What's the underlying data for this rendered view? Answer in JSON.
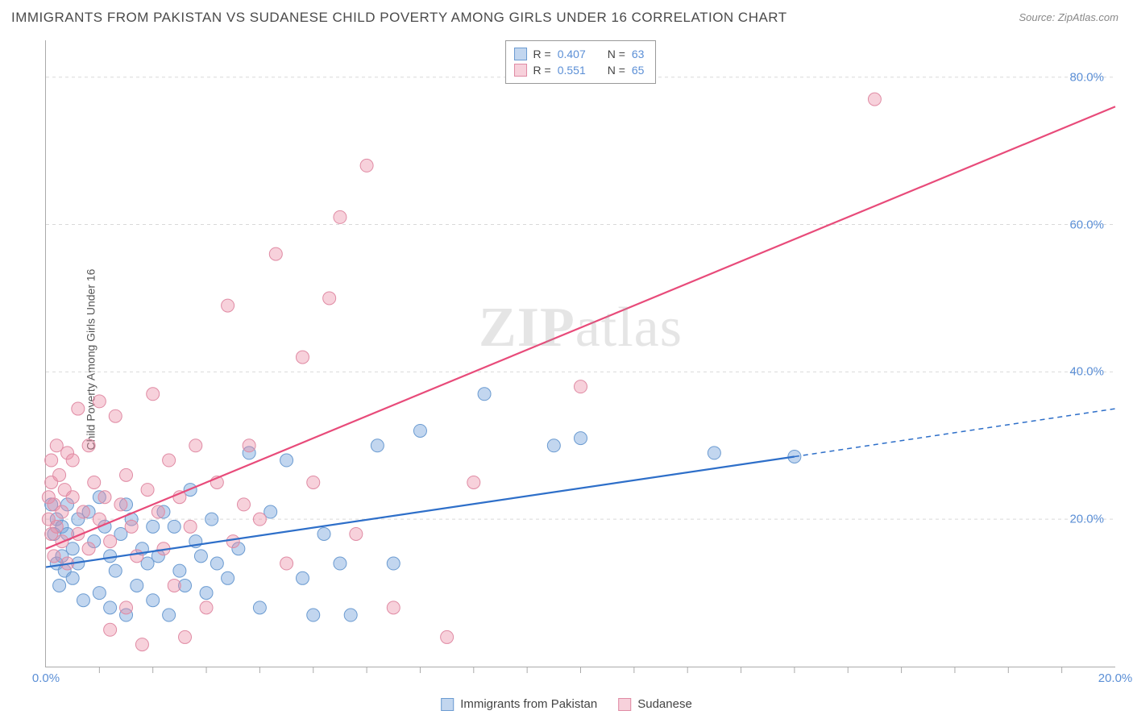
{
  "title": "IMMIGRANTS FROM PAKISTAN VS SUDANESE CHILD POVERTY AMONG GIRLS UNDER 16 CORRELATION CHART",
  "source_prefix": "Source: ",
  "source_link": "ZipAtlas.com",
  "y_axis_label": "Child Poverty Among Girls Under 16",
  "watermark_bold": "ZIP",
  "watermark_rest": "atlas",
  "chart": {
    "type": "scatter",
    "background_color": "#ffffff",
    "grid_color": "#d9d9d9",
    "axis_color": "#aaaaaa",
    "xlim": [
      0,
      20
    ],
    "ylim": [
      0,
      85
    ],
    "x_ticks": [
      {
        "pos": 0,
        "label": "0.0%"
      },
      {
        "pos": 20,
        "label": "20.0%"
      }
    ],
    "x_minor_ticks": [
      1,
      2,
      3,
      4,
      5,
      6,
      7,
      8,
      9,
      10,
      11,
      12,
      13,
      14,
      15,
      16,
      17,
      18,
      19
    ],
    "y_ticks": [
      {
        "pos": 20,
        "label": "20.0%"
      },
      {
        "pos": 40,
        "label": "40.0%"
      },
      {
        "pos": 60,
        "label": "60.0%"
      },
      {
        "pos": 80,
        "label": "80.0%"
      }
    ],
    "series": [
      {
        "id": "pakistan",
        "label": "Immigrants from Pakistan",
        "fill": "rgba(120,165,220,0.45)",
        "stroke": "#6b9bd1",
        "line_stroke": "#2e6fc9",
        "line_width": 2.2,
        "marker_radius": 8,
        "R": "0.407",
        "N": "63",
        "regression": {
          "x1": 0,
          "y1": 13.5,
          "x2": 14,
          "y2": 28.5,
          "dash_x2": 20,
          "dash_y2": 35
        },
        "points": [
          [
            0.1,
            22
          ],
          [
            0.15,
            18
          ],
          [
            0.2,
            14
          ],
          [
            0.2,
            20
          ],
          [
            0.25,
            11
          ],
          [
            0.3,
            15
          ],
          [
            0.3,
            19
          ],
          [
            0.35,
            13
          ],
          [
            0.4,
            18
          ],
          [
            0.4,
            22
          ],
          [
            0.5,
            12
          ],
          [
            0.5,
            16
          ],
          [
            0.6,
            20
          ],
          [
            0.6,
            14
          ],
          [
            0.7,
            9
          ],
          [
            0.8,
            21
          ],
          [
            0.9,
            17
          ],
          [
            1.0,
            10
          ],
          [
            1.0,
            23
          ],
          [
            1.1,
            19
          ],
          [
            1.2,
            8
          ],
          [
            1.2,
            15
          ],
          [
            1.3,
            13
          ],
          [
            1.4,
            18
          ],
          [
            1.5,
            22
          ],
          [
            1.5,
            7
          ],
          [
            1.6,
            20
          ],
          [
            1.7,
            11
          ],
          [
            1.8,
            16
          ],
          [
            1.9,
            14
          ],
          [
            2.0,
            9
          ],
          [
            2.0,
            19
          ],
          [
            2.1,
            15
          ],
          [
            2.2,
            21
          ],
          [
            2.3,
            7
          ],
          [
            2.4,
            19
          ],
          [
            2.5,
            13
          ],
          [
            2.6,
            11
          ],
          [
            2.7,
            24
          ],
          [
            2.8,
            17
          ],
          [
            2.9,
            15
          ],
          [
            3.0,
            10
          ],
          [
            3.1,
            20
          ],
          [
            3.2,
            14
          ],
          [
            3.4,
            12
          ],
          [
            3.6,
            16
          ],
          [
            3.8,
            29
          ],
          [
            4.0,
            8
          ],
          [
            4.2,
            21
          ],
          [
            4.5,
            28
          ],
          [
            4.8,
            12
          ],
          [
            5.0,
            7
          ],
          [
            5.2,
            18
          ],
          [
            5.5,
            14
          ],
          [
            5.7,
            7
          ],
          [
            6.2,
            30
          ],
          [
            6.5,
            14
          ],
          [
            7.0,
            32
          ],
          [
            8.2,
            37
          ],
          [
            9.5,
            30
          ],
          [
            10.0,
            31
          ],
          [
            12.5,
            29
          ],
          [
            14.0,
            28.5
          ]
        ]
      },
      {
        "id": "sudanese",
        "label": "Sudanese",
        "fill": "rgba(235,140,165,0.4)",
        "stroke": "#e08ba4",
        "line_stroke": "#e84b7a",
        "line_width": 2.2,
        "marker_radius": 8,
        "R": "0.551",
        "N": "65",
        "regression": {
          "x1": 0,
          "y1": 16,
          "x2": 20,
          "y2": 76,
          "dash_x2": 20,
          "dash_y2": 76
        },
        "points": [
          [
            0.05,
            20
          ],
          [
            0.05,
            23
          ],
          [
            0.1,
            18
          ],
          [
            0.1,
            25
          ],
          [
            0.1,
            28
          ],
          [
            0.15,
            15
          ],
          [
            0.15,
            22
          ],
          [
            0.2,
            30
          ],
          [
            0.2,
            19
          ],
          [
            0.25,
            26
          ],
          [
            0.3,
            17
          ],
          [
            0.3,
            21
          ],
          [
            0.35,
            24
          ],
          [
            0.4,
            29
          ],
          [
            0.4,
            14
          ],
          [
            0.5,
            23
          ],
          [
            0.5,
            28
          ],
          [
            0.6,
            35
          ],
          [
            0.6,
            18
          ],
          [
            0.7,
            21
          ],
          [
            0.8,
            30
          ],
          [
            0.8,
            16
          ],
          [
            0.9,
            25
          ],
          [
            1.0,
            20
          ],
          [
            1.0,
            36
          ],
          [
            1.1,
            23
          ],
          [
            1.2,
            5
          ],
          [
            1.2,
            17
          ],
          [
            1.3,
            34
          ],
          [
            1.4,
            22
          ],
          [
            1.5,
            26
          ],
          [
            1.5,
            8
          ],
          [
            1.6,
            19
          ],
          [
            1.7,
            15
          ],
          [
            1.8,
            3
          ],
          [
            1.9,
            24
          ],
          [
            2.0,
            37
          ],
          [
            2.1,
            21
          ],
          [
            2.2,
            16
          ],
          [
            2.3,
            28
          ],
          [
            2.4,
            11
          ],
          [
            2.5,
            23
          ],
          [
            2.6,
            4
          ],
          [
            2.7,
            19
          ],
          [
            2.8,
            30
          ],
          [
            3.0,
            8
          ],
          [
            3.2,
            25
          ],
          [
            3.4,
            49
          ],
          [
            3.5,
            17
          ],
          [
            3.7,
            22
          ],
          [
            3.8,
            30
          ],
          [
            4.0,
            20
          ],
          [
            4.3,
            56
          ],
          [
            4.5,
            14
          ],
          [
            4.8,
            42
          ],
          [
            5.0,
            25
          ],
          [
            5.3,
            50
          ],
          [
            5.5,
            61
          ],
          [
            5.8,
            18
          ],
          [
            6.0,
            68
          ],
          [
            6.5,
            8
          ],
          [
            7.5,
            4
          ],
          [
            8.0,
            25
          ],
          [
            10.0,
            38
          ],
          [
            15.5,
            77
          ]
        ]
      }
    ]
  },
  "legend_top_labels": {
    "R": "R =",
    "N": "N ="
  },
  "legend_bottom": [
    {
      "series": "pakistan"
    },
    {
      "series": "sudanese"
    }
  ]
}
